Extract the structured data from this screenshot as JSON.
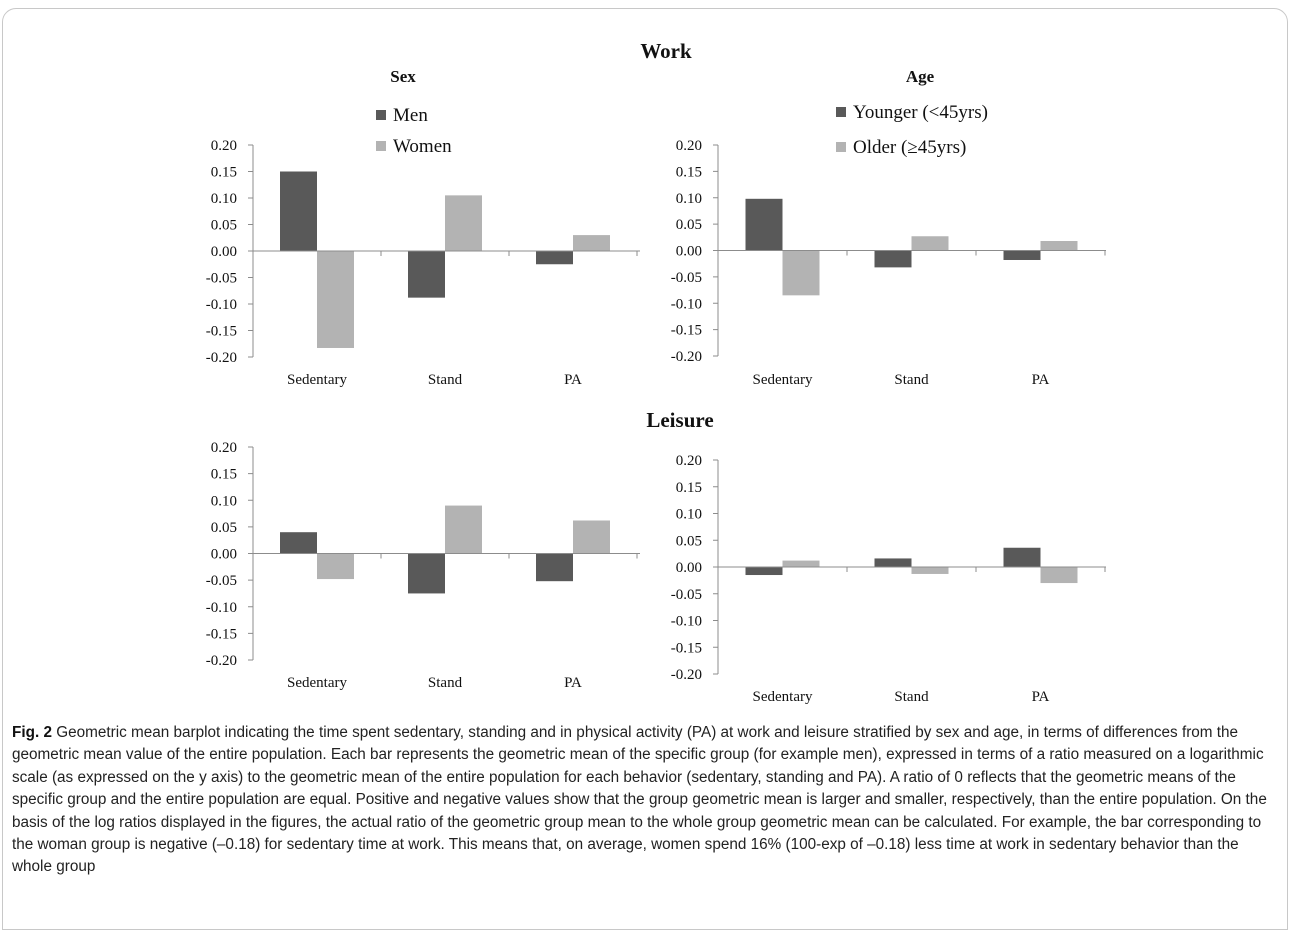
{
  "figure": {
    "section_titles": [
      "Work",
      "Leisure"
    ],
    "caption_label": "Fig. 2",
    "caption_text": "Geometric mean barplot indicating the time spent sedentary, standing and in physical activity (PA) at work and leisure stratified by sex and age, in terms of differences from the geometric mean value of the entire population. Each bar represents the geometric mean of the specific group (for example men), expressed in terms of a ratio measured on a logarithmic scale (as expressed on the y axis) to the geometric mean of the entire population for each behavior (sedentary, standing and PA). A ratio of 0 reflects that the geometric means of the specific group and the entire population are equal. Positive and negative values show that the group geometric mean is larger and smaller, respectively, than the entire population. On the basis of the log ratios displayed in the figures, the actual ratio of the geometric group mean to the whole group geometric mean can be calculated. For example, the bar corresponding to the woman group is negative (–0.18) for sedentary time at work. This means that, on average, women spend 16% (100-exp of –0.18) less time at work in sedentary behavior than the whole group"
  },
  "colors": {
    "series_dark": "#595959",
    "series_light": "#b3b3b3",
    "axis": "#8c8c8c"
  },
  "chart_data": [
    {
      "type": "bar",
      "title": "Sex",
      "section": "Work",
      "categories": [
        "Sedentary",
        "Stand",
        "PA"
      ],
      "series": [
        {
          "name": "Men",
          "values": [
            0.15,
            -0.088,
            -0.025
          ]
        },
        {
          "name": "Women",
          "values": [
            -0.183,
            0.105,
            0.03
          ]
        }
      ],
      "ylim": [
        -0.2,
        0.2
      ],
      "yticks": [
        "0.20",
        "0.15",
        "0.10",
        "0.05",
        "0.00",
        "-0.05",
        "-0.10",
        "-0.15",
        "-0.20"
      ],
      "legend": "top-center"
    },
    {
      "type": "bar",
      "title": "Age",
      "section": "Work",
      "categories": [
        "Sedentary",
        "Stand",
        "PA"
      ],
      "series": [
        {
          "name": "Younger (<45yrs)",
          "values": [
            0.098,
            -0.032,
            -0.018
          ]
        },
        {
          "name": "Older (≥45yrs)",
          "values": [
            -0.085,
            0.027,
            0.018
          ]
        }
      ],
      "ylim": [
        -0.2,
        0.2
      ],
      "yticks": [
        "0.20",
        "0.15",
        "0.10",
        "0.05",
        "0.00",
        "-0.05",
        "-0.10",
        "-0.15",
        "-0.20"
      ],
      "legend": "top-center"
    },
    {
      "type": "bar",
      "title": "",
      "section": "Leisure",
      "categories": [
        "Sedentary",
        "Stand",
        "PA"
      ],
      "series": [
        {
          "values": [
            0.04,
            -0.075,
            -0.052
          ]
        },
        {
          "values": [
            -0.048,
            0.09,
            0.062
          ]
        }
      ],
      "ylim": [
        -0.2,
        0.2
      ],
      "yticks": [
        "0.20",
        "0.15",
        "0.10",
        "0.05",
        "0.00",
        "-0.05",
        "-0.10",
        "-0.15",
        "-0.20"
      ]
    },
    {
      "type": "bar",
      "title": "",
      "section": "Leisure",
      "categories": [
        "Sedentary",
        "Stand",
        "PA"
      ],
      "series": [
        {
          "values": [
            -0.015,
            0.016,
            0.036
          ]
        },
        {
          "values": [
            0.012,
            -0.013,
            -0.03
          ]
        }
      ],
      "ylim": [
        -0.2,
        0.2
      ],
      "yticks": [
        "0.20",
        "0.15",
        "0.10",
        "0.05",
        "0.00",
        "-0.05",
        "-0.10",
        "-0.15",
        "-0.20"
      ]
    }
  ]
}
